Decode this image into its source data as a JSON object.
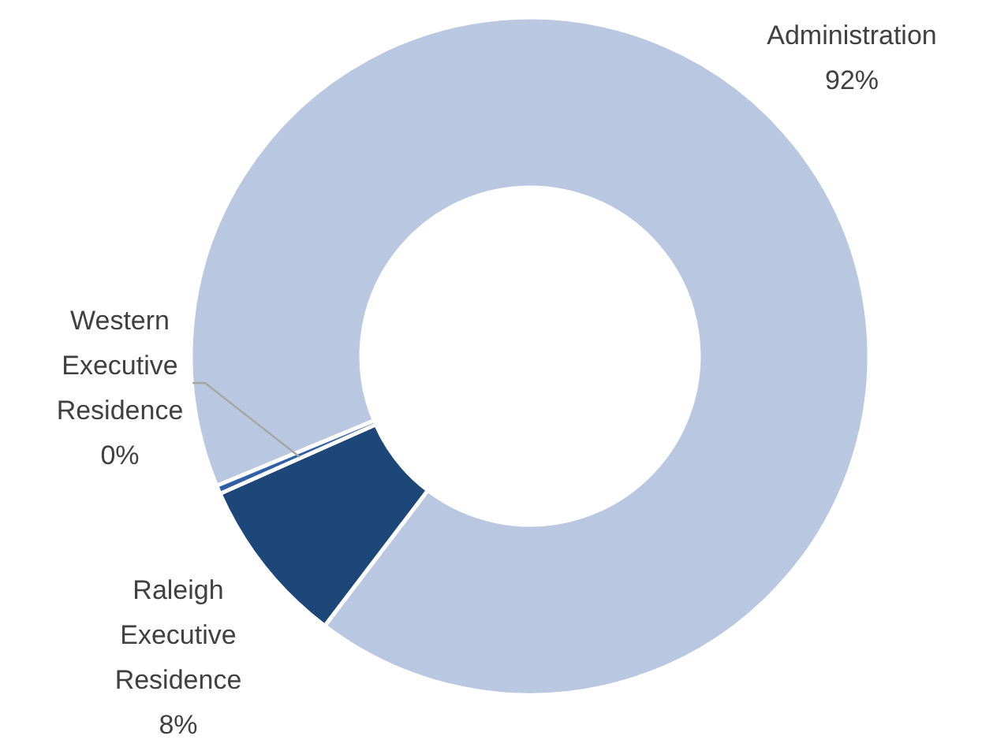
{
  "chart_data": {
    "type": "donut",
    "categories": [
      "Administration",
      "Raleigh Executive Residence",
      "Western Executive Residence"
    ],
    "values": [
      91.6,
      8,
      0.4
    ],
    "value_labels": [
      "92%",
      "8%",
      "0%"
    ],
    "colors": [
      "#b9c7e0",
      "#1d4679",
      "#2f5fa6"
    ]
  }
}
